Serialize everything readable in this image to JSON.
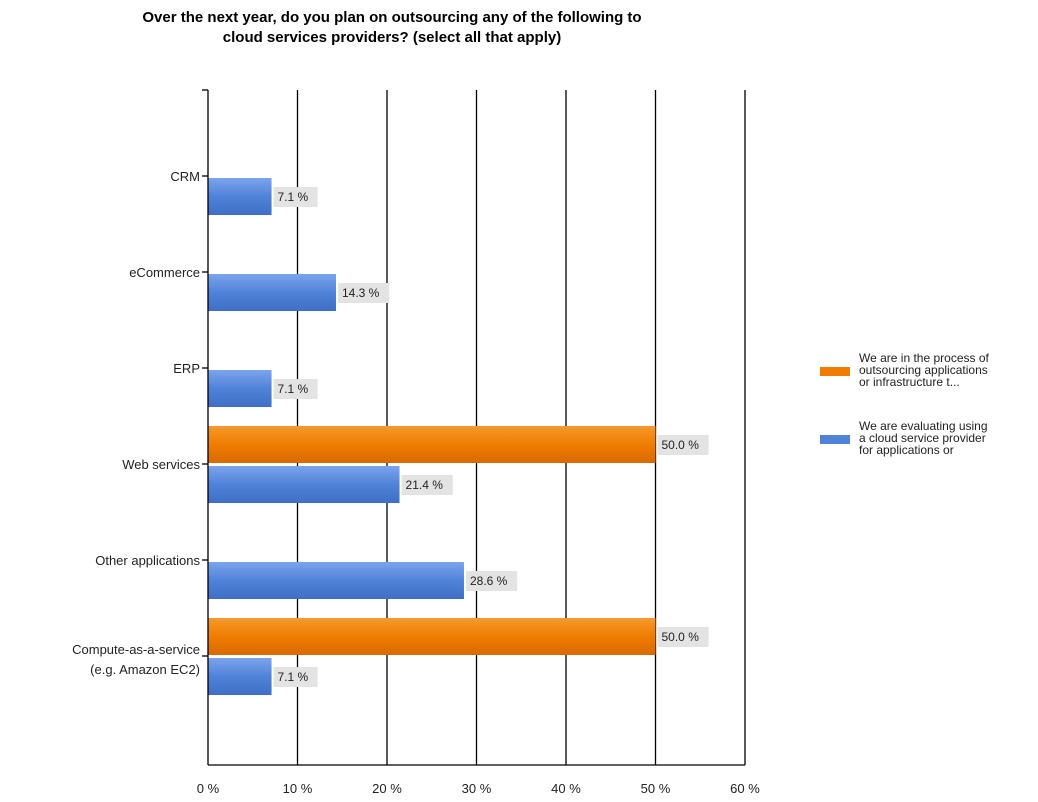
{
  "chart_data": {
    "type": "bar",
    "orientation": "horizontal",
    "title": "Over the next year, do you plan on outsourcing any of the following to cloud services providers? (select all that apply)",
    "title_lines": [
      "Over the next year, do you plan on outsourcing any of the following to",
      "cloud services providers? (select all that apply)"
    ],
    "categories": [
      "CRM",
      "eCommerce",
      "ERP",
      "Web services",
      "Other applications",
      "Compute-as-a-service (e.g. Amazon EC2)"
    ],
    "category_lines": [
      [
        "CRM"
      ],
      [
        "eCommerce"
      ],
      [
        "ERP"
      ],
      [
        "Web services"
      ],
      [
        "Other applications"
      ],
      [
        "Compute-as-a-service",
        "(e.g. Amazon EC2)"
      ]
    ],
    "series": [
      {
        "name": "We are in the process of outsourcing applications or infrastructure t...",
        "legend_lines": [
          "We are in the process of",
          "outsourcing applications",
          "or infrastructure t..."
        ],
        "color": "#F07C00",
        "values": [
          null,
          null,
          null,
          50.0,
          null,
          50.0
        ],
        "labels": [
          null,
          null,
          null,
          "50.0 %",
          null,
          "50.0 %"
        ]
      },
      {
        "name": "We are evaluating using a cloud service provider for applications or",
        "legend_lines": [
          "We are evaluating using",
          "a cloud service provider",
          "for applications or"
        ],
        "color": "#4F83D8",
        "values": [
          7.1,
          14.3,
          7.1,
          21.4,
          28.6,
          7.1
        ],
        "labels": [
          "7.1 %",
          "14.3 %",
          "7.1 %",
          "21.4 %",
          "28.6 %",
          "7.1 %"
        ]
      }
    ],
    "xlim": [
      0,
      60
    ],
    "xticks": [
      0,
      10,
      20,
      30,
      40,
      50,
      60
    ],
    "xtick_labels": [
      "0 %",
      "10 %",
      "20 %",
      "30 %",
      "40 %",
      "50 %",
      "60 %"
    ],
    "grid": true,
    "legend_position": "right"
  }
}
